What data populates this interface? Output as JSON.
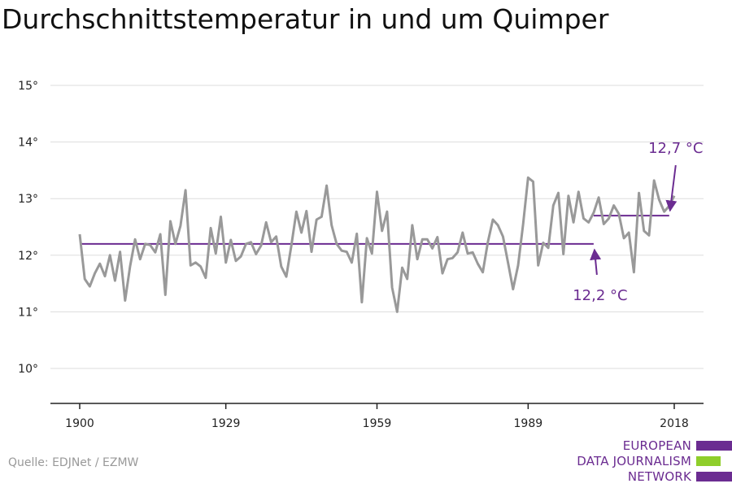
{
  "header": {
    "title": "Durchschnittstemperatur in und um Quimper"
  },
  "footer": {
    "source": "Quelle: EDJNet / EZMW"
  },
  "logo": {
    "lines": [
      "EUROPEAN",
      "DATA JOURNALISM",
      "NETWORK"
    ],
    "colors": {
      "purple": "#6b2c91",
      "green": "#8fce2b"
    }
  },
  "chart_data": {
    "type": "line",
    "title": "Durchschnittstemperatur in und um Quimper",
    "xlabel": "",
    "ylabel": "",
    "xlim": [
      1900,
      2018
    ],
    "ylim": [
      10,
      15
    ],
    "xticks": [
      1900,
      1929,
      1959,
      1989,
      2018
    ],
    "xtick_labels": [
      "1900",
      "1929",
      "1959",
      "1989",
      "2018"
    ],
    "yticks": [
      10,
      11,
      12,
      13,
      14,
      15
    ],
    "ytick_labels": [
      "10°",
      "11°",
      "12°",
      "13°",
      "14°",
      "15°"
    ],
    "grid": "horizontal",
    "colors": {
      "series": "#999999",
      "reference": "#6b2c91",
      "grid": "#dddddd",
      "axis": "#222222"
    },
    "series": [
      {
        "x": [
          1900,
          1901,
          1902,
          1903,
          1904,
          1905,
          1906,
          1907,
          1908,
          1909,
          1910,
          1911,
          1912,
          1913,
          1914,
          1915,
          1916,
          1917,
          1918,
          1919,
          1920,
          1921,
          1922,
          1923,
          1924,
          1925,
          1926,
          1927,
          1928,
          1929,
          1930,
          1931,
          1932,
          1933,
          1934,
          1935,
          1936,
          1937,
          1938,
          1939,
          1940,
          1941,
          1942,
          1943,
          1944,
          1945,
          1946,
          1947,
          1948,
          1949,
          1950,
          1951,
          1952,
          1953,
          1954,
          1955,
          1956,
          1957,
          1958,
          1959,
          1960,
          1961,
          1962,
          1963,
          1964,
          1965,
          1966,
          1967,
          1968,
          1969,
          1970,
          1971,
          1972,
          1973,
          1974,
          1975,
          1976,
          1977,
          1978,
          1979,
          1980,
          1981,
          1982,
          1983,
          1984,
          1985,
          1986,
          1987,
          1988,
          1989,
          1990,
          1991,
          1992,
          1993,
          1994,
          1995,
          1996,
          1997,
          1998,
          1999,
          2000,
          2001,
          2002,
          2003,
          2004,
          2005,
          2006,
          2007,
          2008,
          2009,
          2010,
          2011,
          2012,
          2013,
          2014,
          2015,
          2016,
          2017,
          2018
        ],
        "values": [
          12.37,
          11.58,
          11.45,
          11.68,
          11.85,
          11.63,
          12.0,
          11.55,
          12.06,
          11.2,
          11.8,
          12.28,
          11.93,
          12.2,
          12.18,
          12.05,
          12.37,
          11.3,
          12.6,
          12.2,
          12.52,
          13.15,
          11.82,
          11.87,
          11.8,
          11.6,
          12.48,
          12.03,
          12.68,
          11.87,
          12.27,
          11.9,
          11.98,
          12.2,
          12.23,
          12.02,
          12.17,
          12.58,
          12.23,
          12.33,
          11.8,
          11.62,
          12.17,
          12.77,
          12.4,
          12.78,
          12.06,
          12.63,
          12.68,
          13.23,
          12.53,
          12.2,
          12.08,
          12.06,
          11.87,
          12.38,
          11.17,
          12.3,
          12.03,
          13.12,
          12.43,
          12.77,
          11.43,
          11.0,
          11.78,
          11.58,
          12.53,
          11.93,
          12.28,
          12.28,
          12.12,
          12.32,
          11.68,
          11.93,
          11.95,
          12.05,
          12.4,
          12.03,
          12.05,
          11.85,
          11.7,
          12.23,
          12.63,
          12.53,
          12.33,
          11.87,
          11.4,
          11.82,
          12.55,
          13.37,
          13.3,
          11.82,
          12.22,
          12.13,
          12.88,
          13.1,
          12.02,
          13.05,
          12.58,
          13.12,
          12.65,
          12.58,
          12.75,
          13.02,
          12.55,
          12.65,
          12.88,
          12.73,
          12.3,
          12.4,
          11.7,
          13.1,
          12.43,
          12.35,
          13.32,
          12.98,
          12.77,
          12.87,
          13.05
        ]
      }
    ],
    "reference_lines": [
      {
        "x_from": 1900,
        "x_to": 2002,
        "value": 12.2
      },
      {
        "x_from": 2002,
        "x_to": 2017,
        "value": 12.7
      }
    ],
    "annotations": [
      {
        "text": "12,2 °C",
        "arrow_to": [
          2002,
          12.2
        ]
      },
      {
        "text": "12,7 °C",
        "arrow_to": [
          2017,
          12.7
        ]
      }
    ]
  }
}
